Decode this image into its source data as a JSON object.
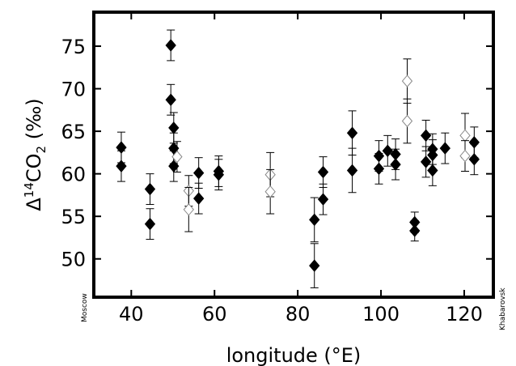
{
  "chart_data": {
    "type": "scatter",
    "xlabel": "longitude (°E)",
    "ylabel": {
      "prefix": "Δ",
      "sup": "14",
      "main": "CO",
      "sub": "2",
      "suffix": " (‰)"
    },
    "xlim": [
      31,
      127
    ],
    "ylim": [
      45.5,
      79
    ],
    "xticks": [
      40,
      60,
      80,
      100,
      120
    ],
    "yticks": [
      50,
      55,
      60,
      65,
      70,
      75
    ],
    "grid": false,
    "legend": "none",
    "edge_labels": {
      "left": "Moscow",
      "right": "Khabarovsk"
    },
    "colors": {
      "filled": "#000000",
      "open_fill": "#ffffff",
      "open_stroke": "#888888",
      "error_bar": "#000000"
    },
    "series": [
      {
        "marker": "filled-diamond",
        "points": [
          {
            "x": 37.6,
            "y": 63.1,
            "err": 1.8
          },
          {
            "x": 37.6,
            "y": 60.9,
            "err": 1.8
          },
          {
            "x": 44.5,
            "y": 58.2,
            "err": 1.8
          },
          {
            "x": 44.5,
            "y": 54.1,
            "err": 1.8
          },
          {
            "x": 49.5,
            "y": 75.1,
            "err": 1.8
          },
          {
            "x": 49.5,
            "y": 68.7,
            "err": 1.8
          },
          {
            "x": 50.2,
            "y": 65.4,
            "err": 1.8
          },
          {
            "x": 50.2,
            "y": 63.0,
            "err": 1.8
          },
          {
            "x": 50.2,
            "y": 60.9,
            "err": 1.8
          },
          {
            "x": 56.2,
            "y": 60.1,
            "err": 1.8
          },
          {
            "x": 56.2,
            "y": 57.1,
            "err": 1.8
          },
          {
            "x": 61.0,
            "y": 60.3,
            "err": 1.8
          },
          {
            "x": 61.0,
            "y": 59.9,
            "err": 1.8
          },
          {
            "x": 84.0,
            "y": 54.6,
            "err": 2.6
          },
          {
            "x": 84.0,
            "y": 49.2,
            "err": 2.6
          },
          {
            "x": 86.1,
            "y": 60.2,
            "err": 1.8
          },
          {
            "x": 86.1,
            "y": 57.0,
            "err": 1.8
          },
          {
            "x": 93.1,
            "y": 64.8,
            "err": 2.6
          },
          {
            "x": 93.1,
            "y": 60.4,
            "err": 2.6
          },
          {
            "x": 99.5,
            "y": 62.1,
            "err": 1.8
          },
          {
            "x": 99.5,
            "y": 60.6,
            "err": 1.8
          },
          {
            "x": 101.6,
            "y": 62.7,
            "err": 1.8
          },
          {
            "x": 103.5,
            "y": 62.3,
            "err": 1.8
          },
          {
            "x": 103.5,
            "y": 61.1,
            "err": 1.8
          },
          {
            "x": 108.1,
            "y": 54.3,
            "err": 1.2
          },
          {
            "x": 108.1,
            "y": 53.3,
            "err": 1.2
          },
          {
            "x": 110.8,
            "y": 64.5,
            "err": 1.8
          },
          {
            "x": 110.8,
            "y": 61.4,
            "err": 1.8
          },
          {
            "x": 112.4,
            "y": 62.9,
            "err": 1.8
          },
          {
            "x": 112.4,
            "y": 62.2,
            "err": 1.8
          },
          {
            "x": 112.4,
            "y": 60.4,
            "err": 1.8
          },
          {
            "x": 115.4,
            "y": 63.0,
            "err": 1.8
          },
          {
            "x": 122.4,
            "y": 63.7,
            "err": 1.8
          },
          {
            "x": 122.4,
            "y": 61.7,
            "err": 1.8
          }
        ]
      },
      {
        "marker": "open-diamond",
        "points": [
          {
            "x": 51.0,
            "y": 62.0,
            "err": 1.8
          },
          {
            "x": 53.8,
            "y": 58.0,
            "err": 1.8
          },
          {
            "x": 53.8,
            "y": 55.8,
            "err": 2.6
          },
          {
            "x": 73.4,
            "y": 59.9,
            "err": 2.6
          },
          {
            "x": 73.4,
            "y": 57.9,
            "err": 2.6
          },
          {
            "x": 106.3,
            "y": 70.9,
            "err": 2.6
          },
          {
            "x": 106.3,
            "y": 66.2,
            "err": 2.6
          },
          {
            "x": 120.2,
            "y": 64.5,
            "err": 2.6
          },
          {
            "x": 120.2,
            "y": 62.1,
            "err": 1.8
          }
        ]
      }
    ]
  }
}
